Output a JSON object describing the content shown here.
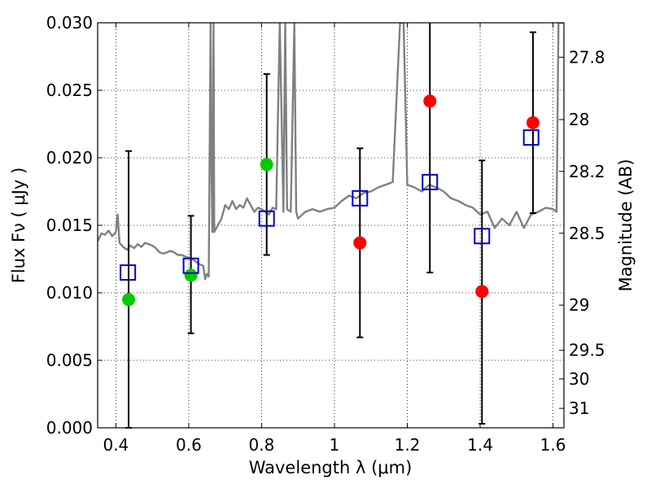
{
  "chart_data": {
    "type": "scatter",
    "xlabel": "Wavelength  λ (μm)",
    "ylabel": "Flux  Fν  ( μJy )",
    "ylabel_right": "Magnitude (AB)",
    "xlim": [
      0.35,
      1.63
    ],
    "ylim": [
      0.0,
      0.03
    ],
    "grid": true,
    "x_ticks": [
      0.4,
      0.6,
      0.8,
      1.0,
      1.2,
      1.4,
      1.6
    ],
    "x_tick_labels": [
      "0.4",
      "0.6",
      "0.8",
      "1",
      "1.2",
      "1.4",
      "1.6"
    ],
    "y_ticks": [
      0.0,
      0.005,
      0.01,
      0.015,
      0.02,
      0.025,
      0.03
    ],
    "y_tick_labels": [
      "0.000",
      "0.005",
      "0.010",
      "0.015",
      "0.020",
      "0.025",
      "0.030"
    ],
    "right_ticks": [
      {
        "label": "27.8",
        "flux": 0.02745
      },
      {
        "label": "28",
        "flux": 0.02283
      },
      {
        "label": "28.2",
        "flux": 0.01899
      },
      {
        "label": "28.5",
        "flux": 0.01441
      },
      {
        "label": "29",
        "flux": 0.00909
      },
      {
        "label": "29.5",
        "flux": 0.00574
      },
      {
        "label": "30",
        "flux": 0.00362
      },
      {
        "label": "31",
        "flux": 0.00144
      }
    ],
    "colors": {
      "model": "#808080",
      "observed_blue": "#00cc00",
      "observed_red": "#ff0000",
      "model_band": "#0000cc",
      "errorbar": "#000000"
    },
    "model_spectrum": {
      "x": [
        0.35,
        0.36,
        0.37,
        0.38,
        0.39,
        0.4,
        0.405,
        0.41,
        0.42,
        0.43,
        0.44,
        0.45,
        0.46,
        0.47,
        0.48,
        0.49,
        0.5,
        0.51,
        0.52,
        0.53,
        0.54,
        0.55,
        0.56,
        0.57,
        0.58,
        0.59,
        0.6,
        0.61,
        0.62,
        0.63,
        0.64,
        0.645,
        0.65,
        0.655,
        0.66,
        0.662,
        0.665,
        0.668,
        0.67,
        0.68,
        0.69,
        0.7,
        0.71,
        0.72,
        0.73,
        0.74,
        0.75,
        0.76,
        0.77,
        0.78,
        0.79,
        0.8,
        0.81,
        0.82,
        0.83,
        0.84,
        0.85,
        0.86,
        0.865,
        0.87,
        0.88,
        0.89,
        0.895,
        0.9,
        0.92,
        0.94,
        0.96,
        0.98,
        1.0,
        1.02,
        1.04,
        1.06,
        1.08,
        1.1,
        1.12,
        1.14,
        1.16,
        1.18,
        1.19,
        1.2,
        1.22,
        1.24,
        1.26,
        1.28,
        1.3,
        1.32,
        1.34,
        1.36,
        1.38,
        1.4,
        1.42,
        1.44,
        1.46,
        1.48,
        1.5,
        1.52,
        1.54,
        1.56,
        1.58,
        1.6,
        1.61,
        1.615,
        1.62,
        1.63
      ],
      "y": [
        0.0138,
        0.0144,
        0.0143,
        0.0146,
        0.0142,
        0.0145,
        0.0158,
        0.0137,
        0.0134,
        0.0132,
        0.0135,
        0.0133,
        0.0136,
        0.0134,
        0.0137,
        0.0136,
        0.0135,
        0.0133,
        0.013,
        0.0129,
        0.013,
        0.0131,
        0.013,
        0.0128,
        0.0128,
        0.0127,
        0.0126,
        0.0125,
        0.0123,
        0.0121,
        0.012,
        0.011,
        0.0114,
        0.0112,
        0.03,
        0.02,
        0.0145,
        0.03,
        0.0145,
        0.015,
        0.0155,
        0.0165,
        0.0162,
        0.0168,
        0.0162,
        0.0165,
        0.0163,
        0.017,
        0.0165,
        0.016,
        0.0163,
        0.0162,
        0.016,
        0.0158,
        0.0163,
        0.0162,
        0.03,
        0.016,
        0.03,
        0.0162,
        0.016,
        0.03,
        0.016,
        0.0155,
        0.016,
        0.0162,
        0.016,
        0.0162,
        0.0163,
        0.0168,
        0.0172,
        0.017,
        0.0174,
        0.0175,
        0.0178,
        0.018,
        0.0182,
        0.03,
        0.03,
        0.018,
        0.0178,
        0.0175,
        0.018,
        0.0178,
        0.0175,
        0.017,
        0.0168,
        0.0165,
        0.0163,
        0.0158,
        0.016,
        0.0148,
        0.0155,
        0.015,
        0.016,
        0.0148,
        0.0158,
        0.016,
        0.0163,
        0.0162,
        0.016,
        0.03,
        0.03,
        0.03
      ]
    },
    "series": [
      {
        "marker": "square",
        "x": [
          0.433,
          0.606,
          0.814,
          1.07,
          1.262,
          1.405,
          1.54
        ],
        "y": [
          0.0115,
          0.012,
          0.0155,
          0.017,
          0.0182,
          0.0142,
          0.0215
        ]
      },
      {
        "marker": "circle",
        "x": [
          0.435,
          0.606,
          0.814
        ],
        "y": [
          0.0095,
          0.0113,
          0.0195
        ],
        "err": [
          [
            0.0095,
            0.011
          ],
          [
            0.0043,
            0.0044
          ],
          [
            0.0067,
            0.0067
          ]
        ]
      },
      {
        "marker": "circle",
        "x": [
          1.07,
          1.262,
          1.405,
          1.545
        ],
        "y": [
          0.0137,
          0.0242,
          0.0101,
          0.0226
        ],
        "err": [
          [
            0.007,
            0.007
          ],
          [
            0.0127,
            0.006
          ],
          [
            0.0098,
            0.0097
          ],
          [
            0.0067,
            0.0067
          ]
        ]
      }
    ]
  }
}
